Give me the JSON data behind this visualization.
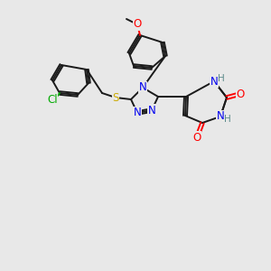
{
  "bg_color": "#e8e8e8",
  "bond_color": "#1a1a1a",
  "colors": {
    "N": "#0000ee",
    "O": "#ff0000",
    "S": "#ccaa00",
    "Cl": "#00aa00",
    "C": "#1a1a1a",
    "H_label": "#5a8a8a"
  },
  "figsize": [
    3.0,
    3.0
  ],
  "dpi": 100
}
